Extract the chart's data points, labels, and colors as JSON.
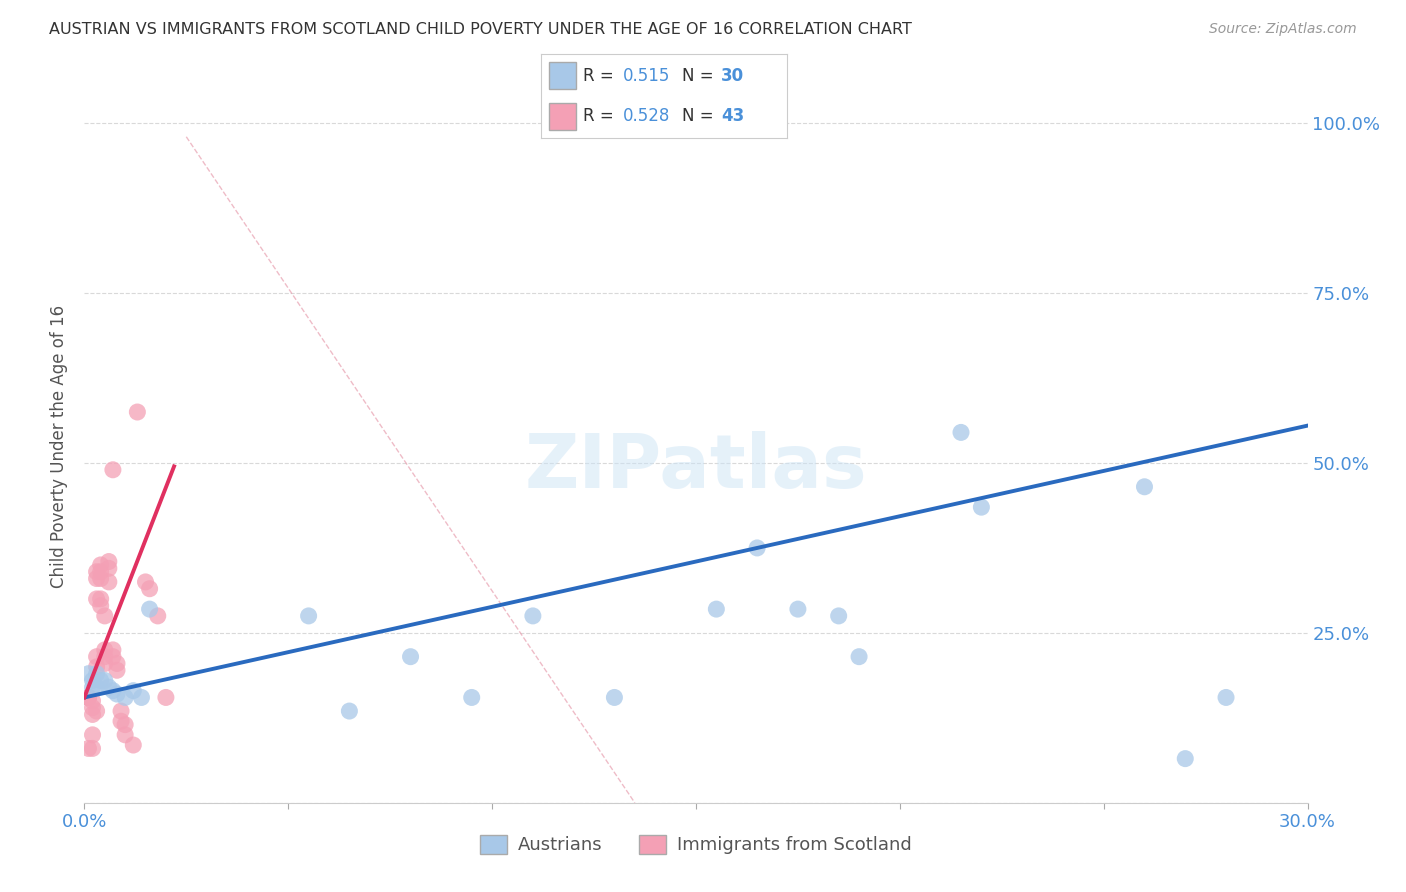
{
  "title": "AUSTRIAN VS IMMIGRANTS FROM SCOTLAND CHILD POVERTY UNDER THE AGE OF 16 CORRELATION CHART",
  "source": "Source: ZipAtlas.com",
  "ylabel": "Child Poverty Under the Age of 16",
  "xlim": [
    0.0,
    0.3
  ],
  "ylim": [
    0.0,
    1.05
  ],
  "r_austrians": 0.515,
  "n_austrians": 30,
  "r_scotland": 0.528,
  "n_scotland": 43,
  "austrians_color": "#a8c8e8",
  "scotland_color": "#f4a0b5",
  "austrians_line_color": "#2a6abf",
  "scotland_line_color": "#e03060",
  "diag_color": "#e0a0b0",
  "watermark": "ZIPatlas",
  "austrians_x": [
    0.001,
    0.002,
    0.002,
    0.003,
    0.003,
    0.004,
    0.005,
    0.006,
    0.007,
    0.008,
    0.01,
    0.012,
    0.014,
    0.016,
    0.055,
    0.065,
    0.08,
    0.095,
    0.11,
    0.13,
    0.155,
    0.165,
    0.175,
    0.185,
    0.19,
    0.215,
    0.22,
    0.26,
    0.27,
    0.28
  ],
  "austrians_y": [
    0.19,
    0.18,
    0.17,
    0.19,
    0.17,
    0.18,
    0.18,
    0.17,
    0.165,
    0.16,
    0.155,
    0.165,
    0.155,
    0.285,
    0.275,
    0.135,
    0.215,
    0.155,
    0.275,
    0.155,
    0.285,
    0.375,
    0.285,
    0.275,
    0.215,
    0.545,
    0.435,
    0.465,
    0.065,
    0.155
  ],
  "scotland_x": [
    0.001,
    0.001,
    0.001,
    0.001,
    0.001,
    0.002,
    0.002,
    0.002,
    0.002,
    0.002,
    0.003,
    0.003,
    0.003,
    0.003,
    0.003,
    0.003,
    0.004,
    0.004,
    0.004,
    0.004,
    0.004,
    0.005,
    0.005,
    0.005,
    0.005,
    0.006,
    0.006,
    0.006,
    0.007,
    0.007,
    0.007,
    0.008,
    0.008,
    0.009,
    0.009,
    0.01,
    0.01,
    0.012,
    0.013,
    0.015,
    0.016,
    0.018,
    0.02
  ],
  "scotland_y": [
    0.155,
    0.155,
    0.155,
    0.155,
    0.08,
    0.15,
    0.14,
    0.13,
    0.1,
    0.08,
    0.34,
    0.33,
    0.3,
    0.215,
    0.2,
    0.135,
    0.35,
    0.34,
    0.33,
    0.3,
    0.29,
    0.275,
    0.225,
    0.215,
    0.205,
    0.355,
    0.345,
    0.325,
    0.49,
    0.225,
    0.215,
    0.205,
    0.195,
    0.135,
    0.12,
    0.115,
    0.1,
    0.085,
    0.575,
    0.325,
    0.315,
    0.275,
    0.155
  ],
  "background_color": "#ffffff",
  "grid_color": "#d0d0d0",
  "title_color": "#333333",
  "axis_tick_color": "#4a90d9",
  "blue_line_x": [
    0.0,
    0.3
  ],
  "blue_line_y": [
    0.155,
    0.555
  ],
  "pink_line_x": [
    0.0,
    0.022
  ],
  "pink_line_y": [
    0.155,
    0.495
  ],
  "diag_line_x": [
    0.025,
    0.135
  ],
  "diag_line_y": [
    0.98,
    0.0
  ]
}
